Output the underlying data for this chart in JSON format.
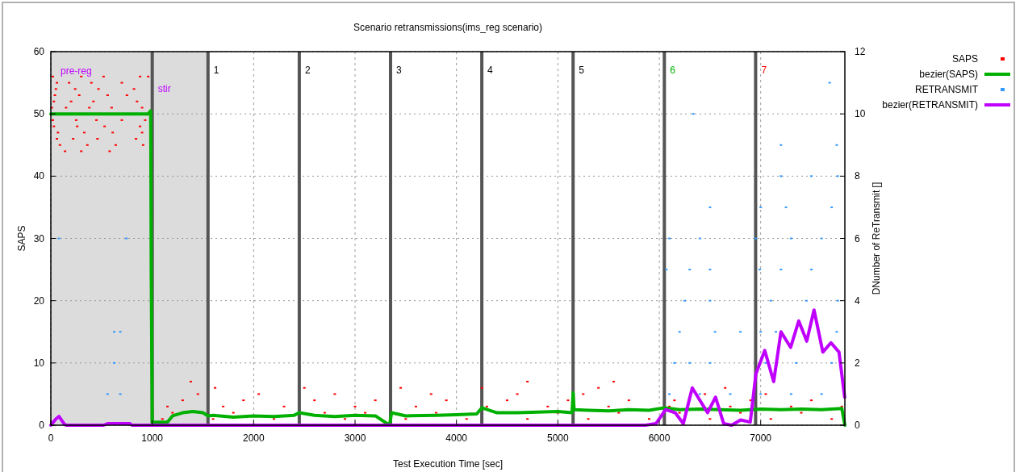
{
  "chart_data": {
    "type": "scatter",
    "title": "Scenario retransmissions(ims_reg scenario)",
    "xlabel": "Test Execution Time [sec]",
    "ylabel": "SAPS",
    "y2label": "DNumber of ReTransmit []",
    "xlim": [
      0,
      7830
    ],
    "xticks": [
      0,
      1000,
      2000,
      3000,
      4000,
      5000,
      6000,
      7000
    ],
    "ylim": [
      0,
      60
    ],
    "yticks": [
      0,
      10,
      20,
      30,
      40,
      50,
      60
    ],
    "y2lim": [
      0,
      12
    ],
    "y2ticks": [
      0,
      2,
      4,
      6,
      8,
      10,
      12
    ],
    "grid": true,
    "legend": "top right",
    "bands": [
      {
        "axis": "x",
        "from": 0,
        "to": 1000,
        "label": "pre-reg",
        "color": "#dcdcdc"
      },
      {
        "axis": "x",
        "from": 1000,
        "to": 1550,
        "label": "stir",
        "color": "#dcdcdc"
      }
    ],
    "annotations": [
      {
        "text": "1",
        "x": 1550,
        "y": 57
      },
      {
        "text": "2",
        "x": 2450,
        "y": 57
      },
      {
        "text": "3",
        "x": 3350,
        "y": 57
      },
      {
        "text": "4",
        "x": 4250,
        "y": 57
      },
      {
        "text": "5",
        "x": 5150,
        "y": 57
      },
      {
        "text": "6",
        "x": 6050,
        "y": 57
      },
      {
        "text": "7",
        "x": 6950,
        "y": 57
      }
    ],
    "ref_lines": [
      {
        "axis": "x",
        "value": 1000
      },
      {
        "axis": "x",
        "value": 1550
      },
      {
        "axis": "x",
        "value": 2450
      },
      {
        "axis": "x",
        "value": 3350
      },
      {
        "axis": "x",
        "value": 4250
      },
      {
        "axis": "x",
        "value": 5150
      },
      {
        "axis": "x",
        "value": 6050
      },
      {
        "axis": "x",
        "value": 6950
      }
    ],
    "series": [
      {
        "name": "SAPS",
        "color": "#ff0000",
        "x": [
          20,
          300,
          520,
          880,
          960,
          60,
          180,
          400,
          700,
          50,
          240,
          470,
          820,
          40,
          280,
          560,
          750,
          30,
          200,
          420,
          850,
          10,
          150,
          380,
          600,
          900,
          20,
          250,
          450,
          700,
          930,
          30,
          260,
          530,
          880,
          70,
          330,
          610,
          900,
          60,
          220,
          460,
          840,
          90,
          360,
          640,
          910,
          140,
          300,
          580,
          1100,
          1600,
          2200,
          2900,
          3500,
          4100,
          4700,
          5300,
          5900,
          6500,
          7100,
          7700,
          1200,
          1800,
          2700,
          3100,
          3800,
          5000,
          5600,
          6200,
          6800,
          7400,
          1150,
          1700,
          2300,
          3000,
          3600,
          4300,
          4900,
          5500,
          6100,
          6700,
          7300,
          7800,
          1300,
          1900,
          2600,
          3200,
          3900,
          4500,
          5100,
          5700,
          6150,
          6900,
          7500,
          1450,
          2050,
          2800,
          3750,
          4600,
          5250,
          6450,
          7050,
          1620,
          2500,
          3450,
          4250,
          5400,
          6650,
          1380,
          4700,
          5550
        ],
        "values": [
          56,
          56,
          56,
          56,
          56,
          55,
          55,
          55,
          55,
          54,
          54,
          54,
          54,
          53,
          53,
          53,
          53,
          52,
          52,
          52,
          52,
          51,
          51,
          51,
          51,
          51,
          49,
          49,
          49,
          49,
          49,
          48,
          48,
          48,
          48,
          47,
          47,
          47,
          47,
          46,
          46,
          46,
          46,
          45,
          45,
          45,
          45,
          44,
          44,
          44,
          1,
          1,
          1,
          1,
          1,
          1,
          1,
          1,
          1,
          1,
          1,
          1,
          2,
          2,
          2,
          2,
          2,
          2,
          2,
          2,
          2,
          2,
          3,
          3,
          3,
          3,
          3,
          3,
          3,
          3,
          3,
          3,
          3,
          3,
          4,
          4,
          4,
          4,
          4,
          4,
          4,
          4,
          4,
          4,
          4,
          5,
          5,
          5,
          5,
          5,
          5,
          5,
          5,
          6,
          6,
          6,
          6,
          6,
          6,
          7,
          7,
          7
        ]
      },
      {
        "name": "bezier(SAPS)",
        "type": "line",
        "color": "#00b000",
        "x": [
          0,
          200,
          400,
          600,
          800,
          900,
          960,
          985,
          990,
          1000,
          1150,
          1200,
          1300,
          1400,
          1500,
          1550,
          1600,
          1800,
          2000,
          2200,
          2400,
          2450,
          2600,
          2800,
          3000,
          3200,
          3340,
          3360,
          3500,
          3800,
          4000,
          4200,
          4250,
          4400,
          4600,
          4800,
          5000,
          5140,
          5150,
          5160,
          5300,
          5500,
          5700,
          5900,
          6050,
          6200,
          6400,
          6600,
          6800,
          7000,
          7200,
          7400,
          7600,
          7800,
          7830
        ],
        "values": [
          50,
          50,
          50,
          50,
          50,
          50,
          50,
          50.5,
          25,
          0.5,
          0.5,
          1.5,
          2,
          2.2,
          2,
          1.5,
          1.6,
          1.3,
          1.5,
          1.4,
          1.6,
          2,
          1.6,
          1.4,
          1.6,
          1.5,
          0,
          2,
          1.5,
          1.6,
          1.7,
          1.8,
          2.8,
          2,
          2,
          2.1,
          2.2,
          2,
          5.2,
          2.5,
          2.4,
          2.3,
          2.5,
          2.4,
          2.8,
          2.5,
          2.6,
          2.5,
          2.4,
          2.6,
          2.5,
          2.6,
          2.5,
          2.7,
          0
        ]
      },
      {
        "name": "RETRANSMIT",
        "axis": "y2",
        "color": "#3399ff",
        "x": [
          80,
          745,
          625,
          685,
          625,
          560,
          685,
          6100,
          6400,
          6700,
          7000,
          7300,
          7600,
          6150,
          6300,
          6500,
          7050,
          7350,
          7700,
          6200,
          6550,
          6800,
          7000,
          7150,
          7750,
          6250,
          6500,
          7100,
          7450,
          7760,
          6070,
          6300,
          6500,
          6990,
          7200,
          7500,
          6100,
          6400,
          6950,
          7300,
          7600,
          6500,
          7000,
          7250,
          7700,
          7200,
          7500,
          7760,
          7200,
          7750,
          6335,
          7680
        ],
        "values": [
          6,
          6,
          3,
          3,
          2,
          1,
          1,
          1,
          1,
          1,
          1,
          1,
          1,
          2,
          2,
          2,
          2,
          2,
          2,
          3,
          3,
          3,
          3,
          3,
          3,
          4,
          4,
          4,
          4,
          4,
          5,
          5,
          5,
          5,
          5,
          5,
          6,
          6,
          6,
          6,
          6,
          7,
          7,
          7,
          7,
          8,
          8,
          8,
          9,
          9,
          10,
          11
        ]
      },
      {
        "name": "bezier(RETRANSMIT)",
        "type": "line",
        "axis": "y2",
        "color": "#c000ff",
        "x": [
          0,
          50,
          80,
          130,
          150,
          520,
          560,
          780,
          800,
          5863,
          5967,
          6062,
          6157,
          6237,
          6325,
          6476,
          6555,
          6635,
          6714,
          6802,
          6897,
          6953,
          7040,
          7128,
          7200,
          7295,
          7375,
          7454,
          7526,
          7613,
          7693,
          7772,
          7828
        ],
        "values": [
          0,
          0.2,
          0.28,
          0.05,
          0,
          0,
          0.05,
          0.05,
          0,
          0,
          0.05,
          0.5,
          0.4,
          0.05,
          1.2,
          0.4,
          0.9,
          0.05,
          0,
          0.17,
          0.1,
          1.65,
          2.4,
          1.4,
          3,
          2.5,
          3.35,
          2.7,
          3.7,
          2.35,
          2.65,
          2.35,
          0.9
        ]
      }
    ]
  }
}
